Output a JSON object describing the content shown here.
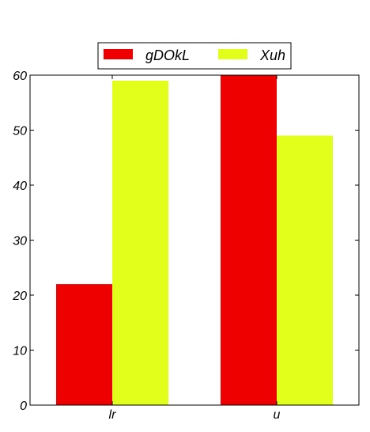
{
  "chart_data": {
    "type": "bar",
    "categories": [
      "lr",
      "u"
    ],
    "series": [
      {
        "name": "gDOkL",
        "values": [
          22,
          60
        ],
        "color": "#ee0000"
      },
      {
        "name": "Xuh",
        "values": [
          59,
          49
        ],
        "color": "#e1ff1a"
      }
    ],
    "ylim": [
      0,
      60
    ],
    "yticks": [
      0,
      10,
      20,
      30,
      40,
      50,
      60
    ],
    "grid": false,
    "legend_position": "top-center"
  }
}
